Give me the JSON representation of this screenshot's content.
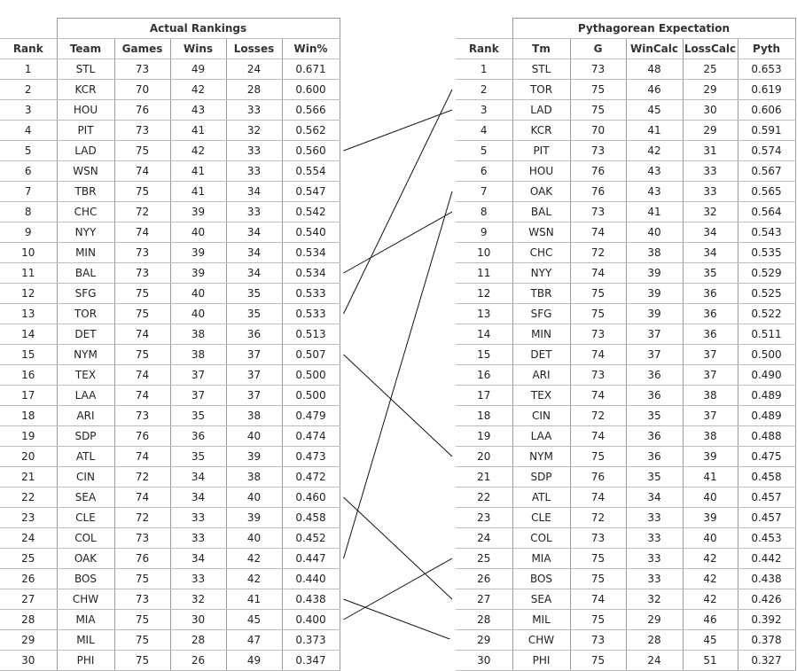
{
  "left": {
    "title": "Actual Rankings",
    "headers": [
      "Rank",
      "Team",
      "Games",
      "Wins",
      "Losses",
      "Win%"
    ],
    "rows": [
      [
        "1",
        "STL",
        "73",
        "49",
        "24",
        "0.671"
      ],
      [
        "2",
        "KCR",
        "70",
        "42",
        "28",
        "0.600"
      ],
      [
        "3",
        "HOU",
        "76",
        "43",
        "33",
        "0.566"
      ],
      [
        "4",
        "PIT",
        "73",
        "41",
        "32",
        "0.562"
      ],
      [
        "5",
        "LAD",
        "75",
        "42",
        "33",
        "0.560"
      ],
      [
        "6",
        "WSN",
        "74",
        "41",
        "33",
        "0.554"
      ],
      [
        "7",
        "TBR",
        "75",
        "41",
        "34",
        "0.547"
      ],
      [
        "8",
        "CHC",
        "72",
        "39",
        "33",
        "0.542"
      ],
      [
        "9",
        "NYY",
        "74",
        "40",
        "34",
        "0.540"
      ],
      [
        "10",
        "MIN",
        "73",
        "39",
        "34",
        "0.534"
      ],
      [
        "11",
        "BAL",
        "73",
        "39",
        "34",
        "0.534"
      ],
      [
        "12",
        "SFG",
        "75",
        "40",
        "35",
        "0.533"
      ],
      [
        "13",
        "TOR",
        "75",
        "40",
        "35",
        "0.533"
      ],
      [
        "14",
        "DET",
        "74",
        "38",
        "36",
        "0.513"
      ],
      [
        "15",
        "NYM",
        "75",
        "38",
        "37",
        "0.507"
      ],
      [
        "16",
        "TEX",
        "74",
        "37",
        "37",
        "0.500"
      ],
      [
        "17",
        "LAA",
        "74",
        "37",
        "37",
        "0.500"
      ],
      [
        "18",
        "ARI",
        "73",
        "35",
        "38",
        "0.479"
      ],
      [
        "19",
        "SDP",
        "76",
        "36",
        "40",
        "0.474"
      ],
      [
        "20",
        "ATL",
        "74",
        "35",
        "39",
        "0.473"
      ],
      [
        "21",
        "CIN",
        "72",
        "34",
        "38",
        "0.472"
      ],
      [
        "22",
        "SEA",
        "74",
        "34",
        "40",
        "0.460"
      ],
      [
        "23",
        "CLE",
        "72",
        "33",
        "39",
        "0.458"
      ],
      [
        "24",
        "COL",
        "73",
        "33",
        "40",
        "0.452"
      ],
      [
        "25",
        "OAK",
        "76",
        "34",
        "42",
        "0.447"
      ],
      [
        "26",
        "BOS",
        "75",
        "33",
        "42",
        "0.440"
      ],
      [
        "27",
        "CHW",
        "73",
        "32",
        "41",
        "0.438"
      ],
      [
        "28",
        "MIA",
        "75",
        "30",
        "45",
        "0.400"
      ],
      [
        "29",
        "MIL",
        "75",
        "28",
        "47",
        "0.373"
      ],
      [
        "30",
        "PHI",
        "75",
        "26",
        "49",
        "0.347"
      ]
    ]
  },
  "right": {
    "title": "Pythagorean Expectation",
    "headers": [
      "Rank",
      "Tm",
      "G",
      "WinCalc",
      "LossCalc",
      "Pyth"
    ],
    "rows": [
      [
        "1",
        "STL",
        "73",
        "48",
        "25",
        "0.653"
      ],
      [
        "2",
        "TOR",
        "75",
        "46",
        "29",
        "0.619"
      ],
      [
        "3",
        "LAD",
        "75",
        "45",
        "30",
        "0.606"
      ],
      [
        "4",
        "KCR",
        "70",
        "41",
        "29",
        "0.591"
      ],
      [
        "5",
        "PIT",
        "73",
        "42",
        "31",
        "0.574"
      ],
      [
        "6",
        "HOU",
        "76",
        "43",
        "33",
        "0.567"
      ],
      [
        "7",
        "OAK",
        "76",
        "43",
        "33",
        "0.565"
      ],
      [
        "8",
        "BAL",
        "73",
        "41",
        "32",
        "0.564"
      ],
      [
        "9",
        "WSN",
        "74",
        "40",
        "34",
        "0.543"
      ],
      [
        "10",
        "CHC",
        "72",
        "38",
        "34",
        "0.535"
      ],
      [
        "11",
        "NYY",
        "74",
        "39",
        "35",
        "0.529"
      ],
      [
        "12",
        "TBR",
        "75",
        "39",
        "36",
        "0.525"
      ],
      [
        "13",
        "SFG",
        "75",
        "39",
        "36",
        "0.522"
      ],
      [
        "14",
        "MIN",
        "73",
        "37",
        "36",
        "0.511"
      ],
      [
        "15",
        "DET",
        "74",
        "37",
        "37",
        "0.500"
      ],
      [
        "16",
        "ARI",
        "73",
        "36",
        "37",
        "0.490"
      ],
      [
        "17",
        "TEX",
        "74",
        "36",
        "38",
        "0.489"
      ],
      [
        "18",
        "CIN",
        "72",
        "35",
        "37",
        "0.489"
      ],
      [
        "19",
        "LAA",
        "74",
        "36",
        "38",
        "0.488"
      ],
      [
        "20",
        "NYM",
        "75",
        "36",
        "39",
        "0.475"
      ],
      [
        "21",
        "SDP",
        "76",
        "35",
        "41",
        "0.458"
      ],
      [
        "22",
        "ATL",
        "74",
        "34",
        "40",
        "0.457"
      ],
      [
        "23",
        "CLE",
        "72",
        "33",
        "39",
        "0.457"
      ],
      [
        "24",
        "COL",
        "73",
        "33",
        "40",
        "0.453"
      ],
      [
        "25",
        "MIA",
        "75",
        "33",
        "42",
        "0.442"
      ],
      [
        "26",
        "BOS",
        "75",
        "33",
        "42",
        "0.438"
      ],
      [
        "27",
        "SEA",
        "74",
        "32",
        "42",
        "0.426"
      ],
      [
        "28",
        "MIL",
        "75",
        "29",
        "46",
        "0.392"
      ],
      [
        "29",
        "CHW",
        "73",
        "28",
        "45",
        "0.378"
      ],
      [
        "30",
        "PHI",
        "75",
        "24",
        "51",
        "0.327"
      ]
    ]
  },
  "connectors": [
    {
      "from_rank": 13,
      "to_rank": 2,
      "team": "TOR"
    },
    {
      "from_rank": 5,
      "to_rank": 3,
      "team": "LAD"
    },
    {
      "from_rank": 25,
      "to_rank": 7,
      "team": "OAK"
    },
    {
      "from_rank": 11,
      "to_rank": 8,
      "team": "BAL"
    },
    {
      "from_rank": 15,
      "to_rank": 20,
      "team": "NYM"
    },
    {
      "from_rank": 28,
      "to_rank": 25,
      "team": "MIA"
    },
    {
      "from_rank": 22,
      "to_rank": 27,
      "team": "SEA"
    },
    {
      "from_rank": 27,
      "to_rank": 29,
      "team": "CHW"
    }
  ]
}
